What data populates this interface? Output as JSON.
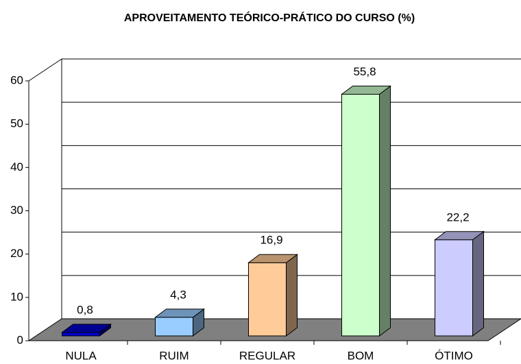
{
  "chart_data": {
    "type": "bar3d",
    "title": "APROVEITAMENTO TEÓRICO-PRÁTICO DO CURSO (%)",
    "categories": [
      "NULA",
      "RUIM",
      "REGULAR",
      "BOM",
      "ÓTIMO"
    ],
    "values": [
      0.8,
      4.3,
      16.9,
      55.8,
      22.2
    ],
    "value_labels": [
      "0,8",
      "4,3",
      "16,9",
      "55,8",
      "22,2"
    ],
    "colors": [
      "#0000cc",
      "#99ccff",
      "#ffcc99",
      "#ccffcc",
      "#ccccff"
    ],
    "ylim": [
      0,
      60
    ],
    "yticks": [
      0,
      10,
      20,
      30,
      40,
      50,
      60
    ],
    "grid": true
  }
}
